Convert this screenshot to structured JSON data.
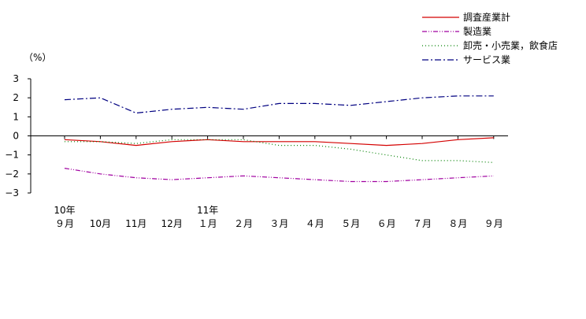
{
  "chart_data": {
    "type": "line",
    "ylabel": "（%）",
    "ylim": [
      -3,
      3
    ],
    "y_ticks": [
      "3",
      "2",
      "1",
      "0",
      "−1",
      "−2",
      "−3"
    ],
    "categories": [
      "10年9月",
      "10月",
      "11月",
      "12月",
      "11年1月",
      "2月",
      "3月",
      "4月",
      "5月",
      "6月",
      "7月",
      "8月",
      "9月"
    ],
    "x_year_labels": [
      "10年",
      "",
      "",
      "",
      "11年",
      "",
      "",
      "",
      "",
      "",
      "",
      "",
      ""
    ],
    "x_month_labels": [
      "９月",
      "10月",
      "11月",
      "12月",
      "１月",
      "２月",
      "３月",
      "４月",
      "５月",
      "６月",
      "７月",
      "８月",
      "９月"
    ],
    "series": [
      {
        "name": "調査産業計",
        "color": "#d40000",
        "dash": "",
        "values": [
          -0.2,
          -0.3,
          -0.5,
          -0.3,
          -0.2,
          -0.3,
          -0.3,
          -0.3,
          -0.4,
          -0.5,
          -0.4,
          -0.2,
          -0.1
        ]
      },
      {
        "name": "製造業",
        "color": "#a000a0",
        "dash": "6,2,1,2,1,2",
        "values": [
          -1.7,
          -2.0,
          -2.2,
          -2.3,
          -2.2,
          -2.1,
          -2.2,
          -2.3,
          -2.4,
          -2.4,
          -2.3,
          -2.2,
          -2.1
        ]
      },
      {
        "name": "卸売・小売業，飲食店",
        "color": "#008000",
        "dash": "1,3",
        "values": [
          -0.3,
          -0.3,
          -0.4,
          -0.2,
          -0.2,
          -0.2,
          -0.5,
          -0.5,
          -0.7,
          -1.0,
          -1.3,
          -1.3,
          -1.4
        ]
      },
      {
        "name": "サービス業",
        "color": "#000080",
        "dash": "8,3,2,3",
        "values": [
          1.9,
          2.0,
          1.2,
          1.4,
          1.5,
          1.4,
          1.7,
          1.7,
          1.6,
          1.8,
          2.0,
          2.1,
          2.1
        ]
      }
    ]
  }
}
